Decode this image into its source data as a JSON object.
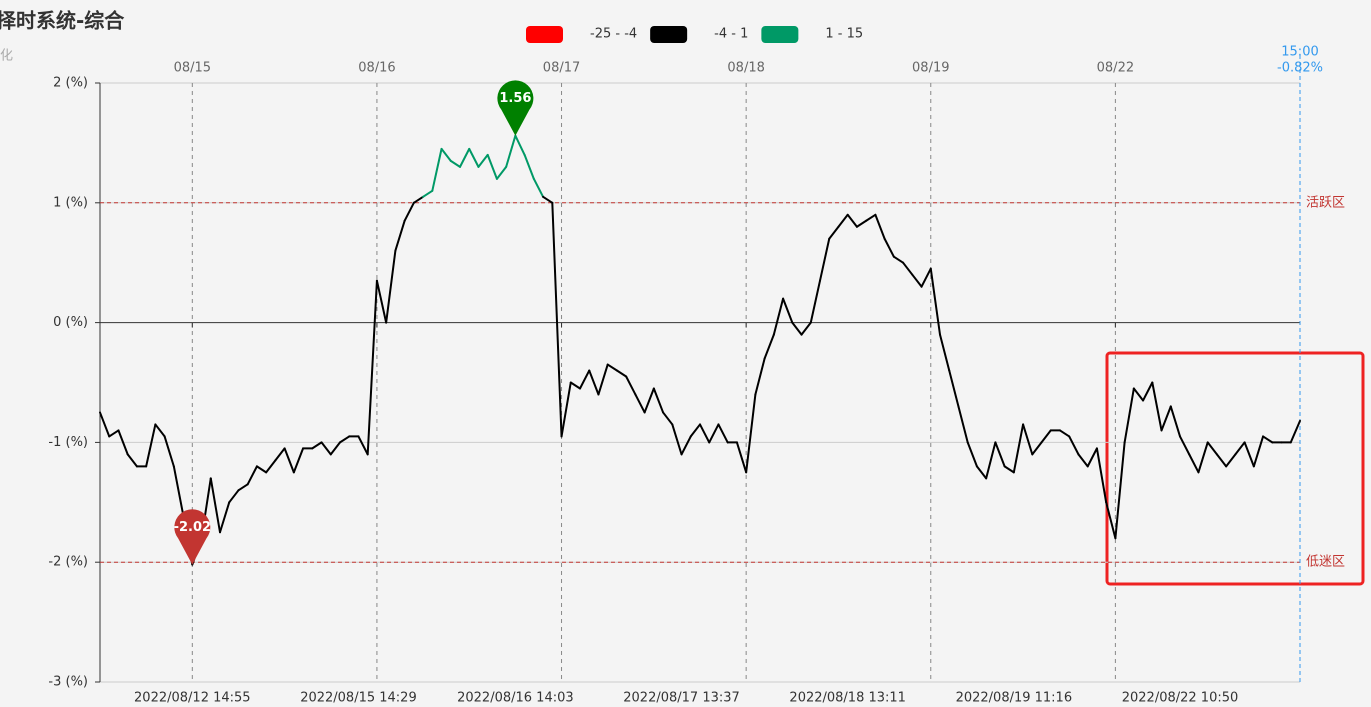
{
  "chart_data": {
    "type": "line",
    "title": "择时系统-综合",
    "subtitle": "化",
    "ylim": [
      -3,
      2
    ],
    "yticks": [
      {
        "value": -3,
        "label": "-3 (%)"
      },
      {
        "value": -2,
        "label": "-2 (%)"
      },
      {
        "value": -1,
        "label": "-1 (%)"
      },
      {
        "value": 0,
        "label": "0 (%)"
      },
      {
        "value": 1,
        "label": "1 (%)"
      },
      {
        "value": 2,
        "label": "2 (%)"
      }
    ],
    "categories": [
      null,
      null,
      null,
      null,
      null,
      null,
      null,
      null,
      null,
      null,
      "2022/08/12 14:55",
      null,
      null,
      null,
      null,
      null,
      null,
      null,
      null,
      null,
      null,
      null,
      null,
      null,
      null,
      null,
      null,
      null,
      "2022/08/15 14:29",
      null,
      null,
      null,
      null,
      null,
      null,
      null,
      null,
      null,
      null,
      null,
      null,
      null,
      null,
      null,
      null,
      "2022/08/16 14:03",
      null,
      null,
      null,
      null,
      null,
      null,
      null,
      null,
      null,
      null,
      null,
      null,
      null,
      null,
      null,
      null,
      null,
      "2022/08/17 13:37",
      null,
      null,
      null,
      null,
      null,
      null,
      null,
      null,
      null,
      null,
      null,
      null,
      null,
      null,
      null,
      null,
      null,
      "2022/08/18 13:11",
      null,
      null,
      null,
      null,
      null,
      null,
      null,
      null,
      null,
      null,
      null,
      null,
      null,
      null,
      null,
      null,
      null,
      "2022/08/19 11:16",
      null,
      null,
      null,
      null,
      null,
      null,
      null,
      null,
      null,
      null,
      null,
      null,
      null,
      null,
      null,
      null,
      null,
      "2022/08/22 10:50",
      null,
      null,
      null,
      null,
      null,
      null,
      null,
      null,
      null,
      null,
      null,
      null,
      null
    ],
    "top_categories": [
      null,
      null,
      null,
      null,
      null,
      null,
      null,
      null,
      null,
      null,
      "08/15",
      null,
      null,
      null,
      null,
      null,
      null,
      null,
      null,
      null,
      null,
      null,
      null,
      null,
      null,
      null,
      null,
      null,
      null,
      null,
      "08/16",
      null,
      null,
      null,
      null,
      null,
      null,
      null,
      null,
      null,
      null,
      null,
      null,
      null,
      null,
      null,
      null,
      null,
      null,
      null,
      "08/17",
      null,
      null,
      null,
      null,
      null,
      null,
      null,
      null,
      null,
      null,
      null,
      null,
      null,
      null,
      null,
      null,
      null,
      null,
      null,
      "08/18",
      null,
      null,
      null,
      null,
      null,
      null,
      null,
      null,
      null,
      null,
      null,
      null,
      null,
      null,
      null,
      null,
      null,
      null,
      null,
      "08/19",
      null,
      null,
      null,
      null,
      null,
      null,
      null,
      null,
      null,
      null,
      null,
      null,
      null,
      null,
      null,
      null,
      null,
      null,
      null,
      "08/22",
      null,
      null,
      null,
      null,
      null,
      null,
      null,
      null,
      null,
      null,
      null,
      null,
      null,
      null,
      null,
      null,
      null,
      null,
      null,
      null
    ],
    "values": [
      -0.75,
      -0.95,
      -0.9,
      -1.1,
      -1.2,
      -1.2,
      -0.85,
      -0.95,
      -1.2,
      -1.6,
      -2.02,
      -1.8,
      -1.3,
      -1.75,
      -1.5,
      -1.4,
      -1.35,
      -1.2,
      -1.25,
      -1.15,
      -1.05,
      -1.25,
      -1.05,
      -1.05,
      -1.0,
      -1.1,
      -1.0,
      -0.95,
      -0.95,
      -1.1,
      0.35,
      0.0,
      0.6,
      0.85,
      1.0,
      1.05,
      1.1,
      1.45,
      1.35,
      1.3,
      1.45,
      1.3,
      1.4,
      1.2,
      1.3,
      1.56,
      1.4,
      1.2,
      1.05,
      1.0,
      -0.95,
      -0.5,
      -0.55,
      -0.4,
      -0.6,
      -0.35,
      -0.4,
      -0.45,
      -0.6,
      -0.75,
      -0.55,
      -0.75,
      -0.85,
      -1.1,
      -0.95,
      -0.85,
      -1.0,
      -0.85,
      -1.0,
      -1.0,
      -1.25,
      -0.6,
      -0.3,
      -0.1,
      0.2,
      0.0,
      -0.1,
      0.0,
      0.35,
      0.7,
      0.8,
      0.9,
      0.8,
      0.85,
      0.9,
      0.7,
      0.55,
      0.5,
      0.4,
      0.3,
      0.45,
      -0.1,
      -0.4,
      -0.7,
      -1.0,
      -1.2,
      -1.3,
      -1.0,
      -1.2,
      -1.25,
      -0.85,
      -1.1,
      -1.0,
      -0.9,
      -0.9,
      -0.95,
      -1.1,
      -1.2,
      -1.05,
      -1.5,
      -1.8,
      -1.0,
      -0.55,
      -0.65,
      -0.5,
      -0.9,
      -0.7,
      -0.95,
      -1.1,
      -1.25,
      -1.0,
      -1.1,
      -1.2,
      -1.1,
      -1.0,
      -1.2,
      -0.95,
      -1.0,
      -1.0,
      -1.0,
      -0.82
    ],
    "pieces": [
      {
        "min": -25,
        "max": -4,
        "label": "-25 - -4",
        "color": "#ff0000"
      },
      {
        "min": -4,
        "max": 1,
        "label": "-4 - 1",
        "color": "#000000"
      },
      {
        "min": 1,
        "max": 15,
        "label": "1 - 15",
        "color": "#009966"
      }
    ],
    "mark_lines": [
      {
        "value": 1,
        "label": "活跃区"
      },
      {
        "value": -2,
        "label": "低迷区"
      }
    ],
    "mark_points": [
      {
        "value": 1.56,
        "color": "#008000"
      },
      {
        "value": -2.02,
        "color": "#c23531"
      }
    ],
    "cursor": {
      "time": "15:00",
      "value": -0.82,
      "value_label": "-0.82%"
    }
  }
}
